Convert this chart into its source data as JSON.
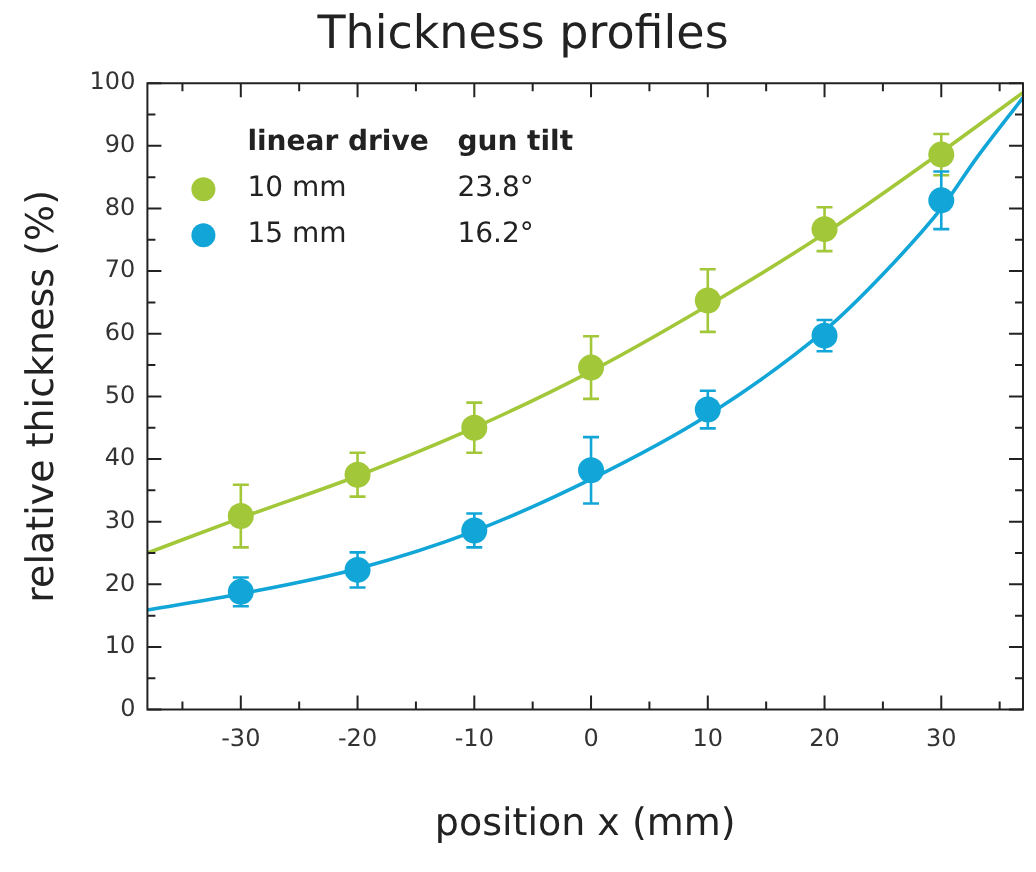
{
  "chart_data": {
    "type": "scatter",
    "title": "Thickness profiles",
    "xlabel": "position x (mm)",
    "ylabel": "relative thickness (%)",
    "legend": "top left",
    "legend_title": "linear drive",
    "annotations": [
      "gun tilt",
      "23.8°",
      "16.2°"
    ],
    "marker": "circle",
    "grid": false,
    "xlim": [
      -38,
      37
    ],
    "xticks": [
      {
        "value": -35,
        "label": null
      },
      -30,
      {
        "value": -25,
        "label": null
      },
      -20,
      {
        "value": -15,
        "label": null
      },
      -10,
      {
        "value": -5,
        "label": null
      },
      0,
      {
        "value": 5,
        "label": null
      },
      10,
      {
        "value": 15,
        "label": null
      },
      20,
      {
        "value": 25,
        "label": null
      },
      30,
      {
        "value": 35,
        "label": null
      }
    ],
    "ylim": [
      0,
      100
    ],
    "yticks": [
      0,
      {
        "value": 5,
        "label": null
      },
      10,
      {
        "value": 15,
        "label": null
      },
      20,
      {
        "value": 25,
        "label": null
      },
      30,
      {
        "value": 35,
        "label": null
      },
      40,
      {
        "value": 45,
        "label": null
      },
      50,
      {
        "value": 55,
        "label": null
      },
      60,
      {
        "value": 65,
        "label": null
      },
      70,
      {
        "value": 75,
        "label": null
      },
      80,
      {
        "value": 85,
        "label": null
      },
      90,
      {
        "value": 95,
        "label": null
      },
      100
    ],
    "series": [
      {
        "name": "10 mm",
        "color": "#a2c83a",
        "x": [
          -30,
          -20,
          -10,
          0,
          10,
          20,
          30
        ],
        "values": [
          30.9,
          37.5,
          45.0,
          54.6,
          65.3,
          76.7,
          88.6
        ],
        "errors": [
          5,
          3.5,
          4,
          5,
          5,
          3.5,
          3.3
        ]
      },
      {
        "name": "15 mm",
        "color": "#12a6d8",
        "x": [
          -30,
          -20,
          -10,
          0,
          10,
          20,
          30
        ],
        "values": [
          18.8,
          22.3,
          28.6,
          38.2,
          47.9,
          59.7,
          81.3
        ],
        "errors": [
          2.3,
          2.8,
          2.7,
          5.3,
          3,
          2.5,
          4.6
        ]
      },
      {
        "type": "line",
        "marker": "none",
        "color": "#a2c83a",
        "x": [
          -38,
          -30,
          -20,
          -10,
          0,
          10,
          20,
          30,
          37
        ],
        "values": [
          25,
          30.6,
          37.3,
          45,
          54,
          64.5,
          76,
          89,
          98.5
        ]
      },
      {
        "type": "line",
        "marker": "none",
        "color": "#12a6d8",
        "x": [
          -38,
          -30,
          -20,
          -10,
          0,
          10,
          20,
          25,
          30,
          33,
          37
        ],
        "values": [
          15.9,
          18.5,
          22.5,
          28.5,
          36.8,
          47,
          60.5,
          69.5,
          80,
          88,
          97.7
        ]
      }
    ]
  }
}
